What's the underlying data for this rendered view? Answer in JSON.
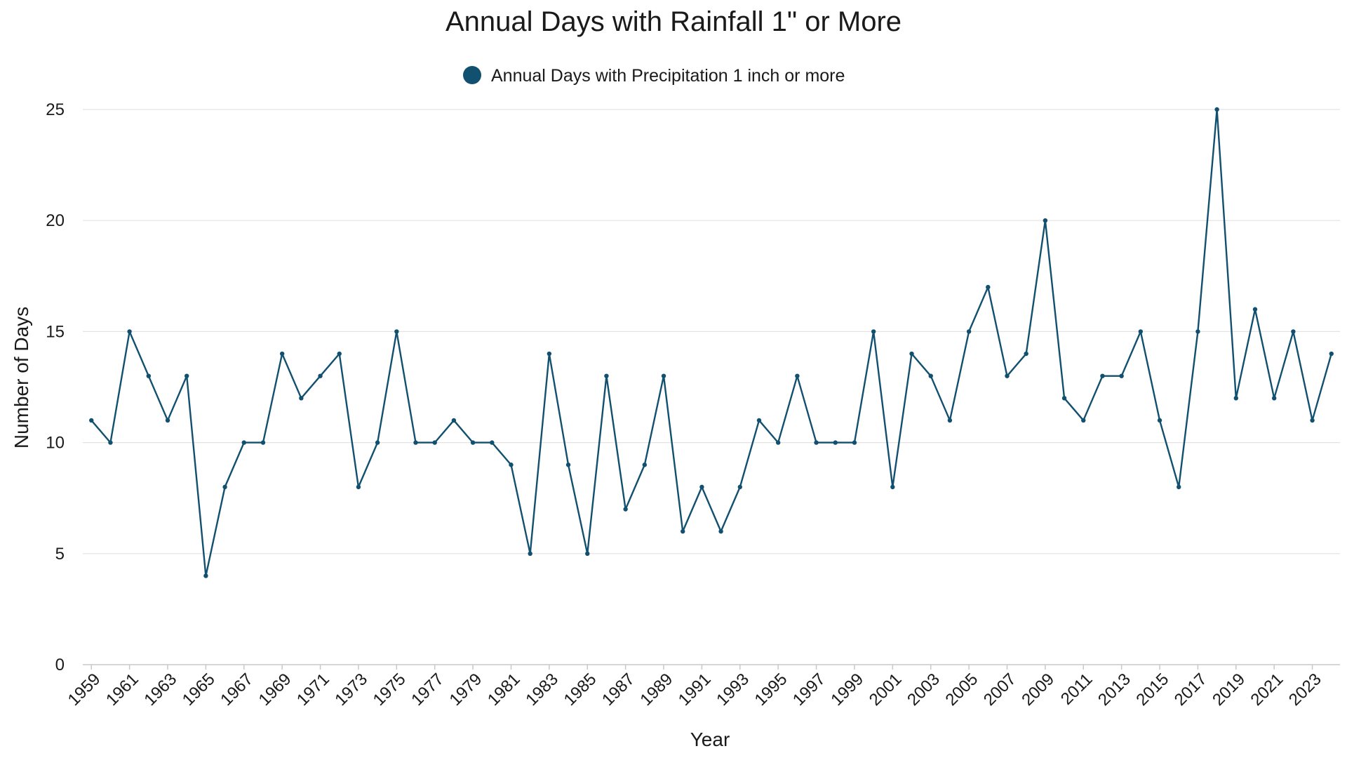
{
  "chart_data": {
    "type": "line",
    "title": "Annual Days with Rainfall 1\" or More",
    "xlabel": "Year",
    "ylabel": "Number of Days",
    "ylim": [
      0,
      25
    ],
    "yticks": [
      0,
      5,
      10,
      15,
      20,
      25
    ],
    "xticks": [
      1959,
      1961,
      1963,
      1965,
      1967,
      1969,
      1971,
      1973,
      1975,
      1977,
      1979,
      1981,
      1983,
      1985,
      1987,
      1989,
      1991,
      1993,
      1995,
      1997,
      1999,
      2001,
      2003,
      2005,
      2007,
      2009,
      2011,
      2013,
      2015,
      2017,
      2019,
      2021,
      2023
    ],
    "grid": true,
    "legend_position": "top-center",
    "color": "#12506f",
    "series": [
      {
        "name": "Annual Days with Precipitation 1 inch or more",
        "x": [
          1959,
          1960,
          1961,
          1962,
          1963,
          1964,
          1965,
          1966,
          1967,
          1968,
          1969,
          1970,
          1971,
          1972,
          1973,
          1974,
          1975,
          1976,
          1977,
          1978,
          1979,
          1980,
          1981,
          1982,
          1983,
          1984,
          1985,
          1986,
          1987,
          1988,
          1989,
          1990,
          1991,
          1992,
          1993,
          1994,
          1995,
          1996,
          1997,
          1998,
          1999,
          2000,
          2001,
          2002,
          2003,
          2004,
          2005,
          2006,
          2007,
          2008,
          2009,
          2010,
          2011,
          2012,
          2013,
          2014,
          2015,
          2016,
          2017,
          2018,
          2019,
          2020,
          2021,
          2022,
          2023,
          2024
        ],
        "values": [
          11,
          10,
          15,
          13,
          11,
          13,
          4,
          8,
          10,
          10,
          14,
          12,
          13,
          14,
          8,
          10,
          15,
          10,
          10,
          11,
          10,
          10,
          9,
          5,
          14,
          9,
          5,
          13,
          7,
          9,
          13,
          6,
          8,
          6,
          8,
          11,
          10,
          13,
          10,
          10,
          10,
          15,
          8,
          14,
          13,
          11,
          15,
          17,
          13,
          14,
          20,
          12,
          11,
          13,
          13,
          15,
          11,
          8,
          15,
          25,
          12,
          16,
          12,
          15,
          11,
          14
        ]
      }
    ]
  }
}
